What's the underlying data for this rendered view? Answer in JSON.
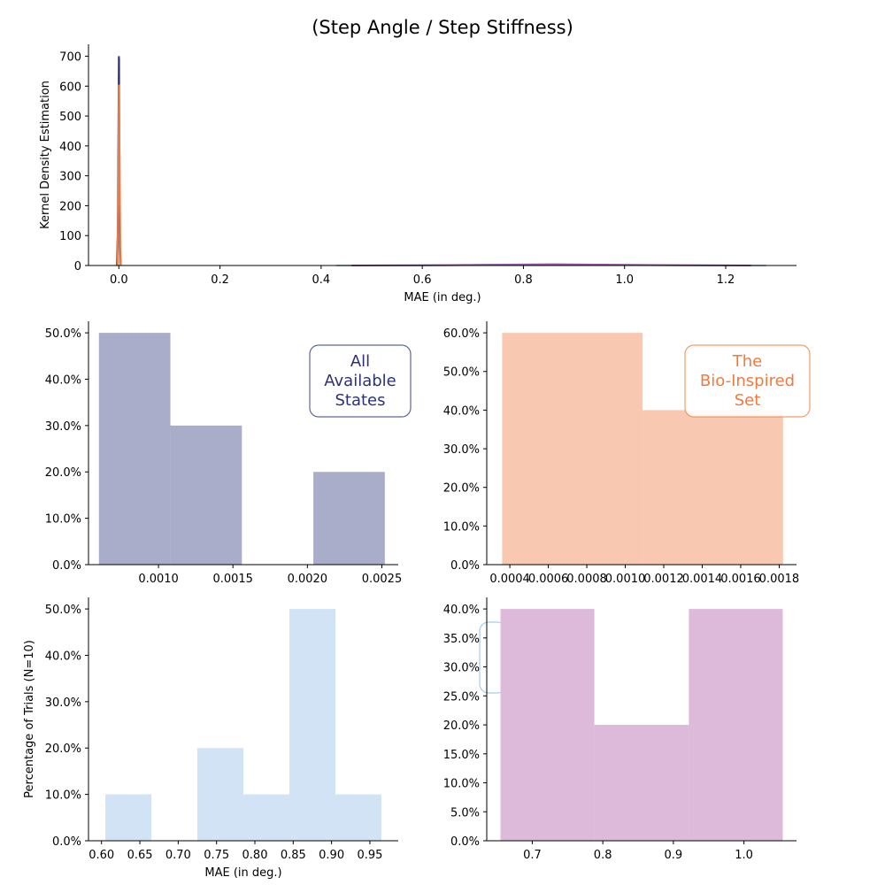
{
  "title": "(Step Angle / Step Stiffness)",
  "chart_data": [
    {
      "type": "area",
      "id": "kde",
      "xlabel": "MAE (in deg.)",
      "ylabel": "Kernel Density Estimation",
      "xlim": [
        -0.06,
        1.34
      ],
      "ylim": [
        0,
        740
      ],
      "xticks": [
        0.0,
        0.2,
        0.4,
        0.6,
        0.8,
        1.0,
        1.2
      ],
      "xtick_labels": [
        "0.0",
        "0.2",
        "0.4",
        "0.6",
        "0.8",
        "1.0",
        "1.2"
      ],
      "yticks": [
        0,
        100,
        200,
        300,
        400,
        500,
        600,
        700
      ],
      "ytick_labels": [
        "0",
        "100",
        "200",
        "300",
        "400",
        "500",
        "600",
        "700"
      ],
      "series": [
        {
          "color": "#2b3278",
          "x": [
            -0.004,
            -0.002,
            0.0,
            0.0005,
            0.001,
            0.002,
            0.004
          ],
          "y": [
            0,
            120,
            700,
            690,
            320,
            60,
            0
          ]
        },
        {
          "color": "#ef7b3e",
          "x": [
            -0.003,
            -0.001,
            0.0,
            0.0005,
            0.001,
            0.0015,
            0.002,
            0.003,
            0.004
          ],
          "y": [
            0,
            250,
            605,
            600,
            420,
            380,
            250,
            60,
            0
          ]
        },
        {
          "color": "#a9cce8",
          "x": [
            0.43,
            0.6,
            0.75,
            0.86,
            0.95,
            1.1,
            1.28
          ],
          "y": [
            0,
            0.8,
            3,
            6,
            3,
            0.8,
            0
          ]
        },
        {
          "color": "#9a4f9a",
          "x": [
            0.46,
            0.6,
            0.75,
            0.85,
            0.95,
            1.05,
            1.25
          ],
          "y": [
            0,
            0.7,
            2.2,
            2.6,
            2.5,
            1.5,
            0
          ]
        }
      ]
    },
    {
      "type": "bar",
      "id": "hist_all",
      "color": "#a9adca",
      "bin_edges": [
        0.0006,
        0.00108,
        0.00156,
        0.00204,
        0.00252
      ],
      "values": [
        0.5,
        0.3,
        0.0,
        0.2
      ],
      "xlim": [
        0.00053,
        0.00261
      ],
      "ylim": [
        0,
        0.525
      ],
      "xticks": [
        0.001,
        0.0015,
        0.002,
        0.0025
      ],
      "xtick_labels": [
        "0.0010",
        "0.0015",
        "0.0020",
        "0.0025"
      ],
      "yticks": [
        0,
        0.1,
        0.2,
        0.3,
        0.4,
        0.5
      ],
      "ytick_labels": [
        "0.0%",
        "10.0%",
        "20.0%",
        "30.0%",
        "40.0%",
        "50.0%"
      ],
      "annotation": {
        "lines": [
          "All",
          "Available",
          "States"
        ],
        "color": "#2b3278"
      }
    },
    {
      "type": "bar",
      "id": "hist_bio",
      "color": "#f9c8b0",
      "bin_edges": [
        0.00036,
        0.00109,
        0.00182
      ],
      "values": [
        0.6,
        0.4
      ],
      "xlim": [
        0.00028,
        0.00189
      ],
      "ylim": [
        0,
        0.63
      ],
      "xticks": [
        0.0004,
        0.0006,
        0.0008,
        0.001,
        0.0012,
        0.0014,
        0.0016,
        0.0018
      ],
      "xtick_labels": [
        "0.0004",
        "0.0006",
        "0.0008",
        "0.0010",
        "0.0012",
        "0.0014",
        "0.0016",
        "0.0018"
      ],
      "yticks": [
        0,
        0.1,
        0.2,
        0.3,
        0.4,
        0.5,
        0.6
      ],
      "ytick_labels": [
        "0.0%",
        "10.0%",
        "20.0%",
        "30.0%",
        "40.0%",
        "50.0%",
        "60.0%"
      ],
      "annotation": {
        "lines": [
          "The",
          "Bio-Inspired",
          "Set"
        ],
        "color": "#ef7b3e"
      }
    },
    {
      "type": "bar",
      "id": "hist_blue",
      "color": "#d1e3f4",
      "xlabel": "MAE (in deg.)",
      "ylabel": "Percentage of Trials (N=10)",
      "bin_edges": [
        0.605,
        0.665,
        0.725,
        0.785,
        0.845,
        0.905,
        0.965
      ],
      "values": [
        0.1,
        0.0,
        0.2,
        0.1,
        0.5,
        0.1
      ],
      "xlim": [
        0.583,
        0.987
      ],
      "ylim": [
        0,
        0.525
      ],
      "xticks": [
        0.6,
        0.65,
        0.7,
        0.75,
        0.8,
        0.85,
        0.9,
        0.95
      ],
      "xtick_labels": [
        "0.60",
        "0.65",
        "0.70",
        "0.75",
        "0.80",
        "0.85",
        "0.90",
        "0.95"
      ],
      "yticks": [
        0,
        0.1,
        0.2,
        0.3,
        0.4,
        0.5
      ],
      "ytick_labels": [
        "0.0%",
        "10.0%",
        "20.0%",
        "30.0%",
        "40.0%",
        "50.0%"
      ]
    },
    {
      "type": "bar",
      "id": "hist_purple",
      "color": "#ddbad9",
      "bin_edges": [
        0.655,
        0.788,
        0.922,
        1.055
      ],
      "values": [
        0.4,
        0.2,
        0.4
      ],
      "xlim": [
        0.6355,
        1.0745
      ],
      "ylim": [
        0,
        0.42
      ],
      "xticks": [
        0.7,
        0.8,
        0.9,
        1.0
      ],
      "xtick_labels": [
        "0.7",
        "0.8",
        "0.9",
        "1.0"
      ],
      "yticks": [
        0,
        0.05,
        0.1,
        0.15,
        0.2,
        0.25,
        0.3,
        0.35,
        0.4
      ],
      "ytick_labels": [
        "0.0%",
        "5.0%",
        "10.0%",
        "15.0%",
        "20.0%",
        "25.0%",
        "30.0%",
        "35.0%",
        "40.0%"
      ]
    }
  ]
}
